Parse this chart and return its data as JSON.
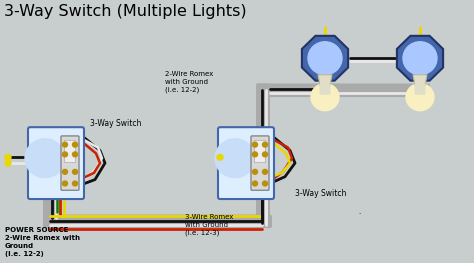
{
  "title": "3-Way Switch (Multiple Lights)",
  "bg_color": "#c8cece",
  "title_color": "#000000",
  "title_fontsize": 11.5,
  "wire_colors": {
    "black": "#111111",
    "white": "#e8e8e8",
    "red": "#cc2200",
    "yellow": "#e8d800",
    "green": "#008800",
    "gray": "#999999"
  },
  "labels": {
    "power_source": "POWER SOURCE\n2-Wire Romex with\nGround\n(i.e. 12-2)",
    "romex_2wire": "2-Wire Romex\nwith Ground\n(i.e. 12-2)",
    "romex_3wire": "3-Wire Romex\nwith Ground\n(i.e. 12-3)",
    "switch1_label": "3-Way Switch",
    "switch2_label": "3-Way Switch",
    "dot": "."
  },
  "conduit_color": "#aaaaaa",
  "box_edge": "#4466aa",
  "box_face": "#ddeeff",
  "switch_face": "#d8d8d8",
  "oct_face": "#4466aa",
  "oct_edge": "#223366",
  "light_inner": "#aac8ff",
  "bulb_color": "#f8f0c0",
  "socket_color": "#e0ddc8"
}
